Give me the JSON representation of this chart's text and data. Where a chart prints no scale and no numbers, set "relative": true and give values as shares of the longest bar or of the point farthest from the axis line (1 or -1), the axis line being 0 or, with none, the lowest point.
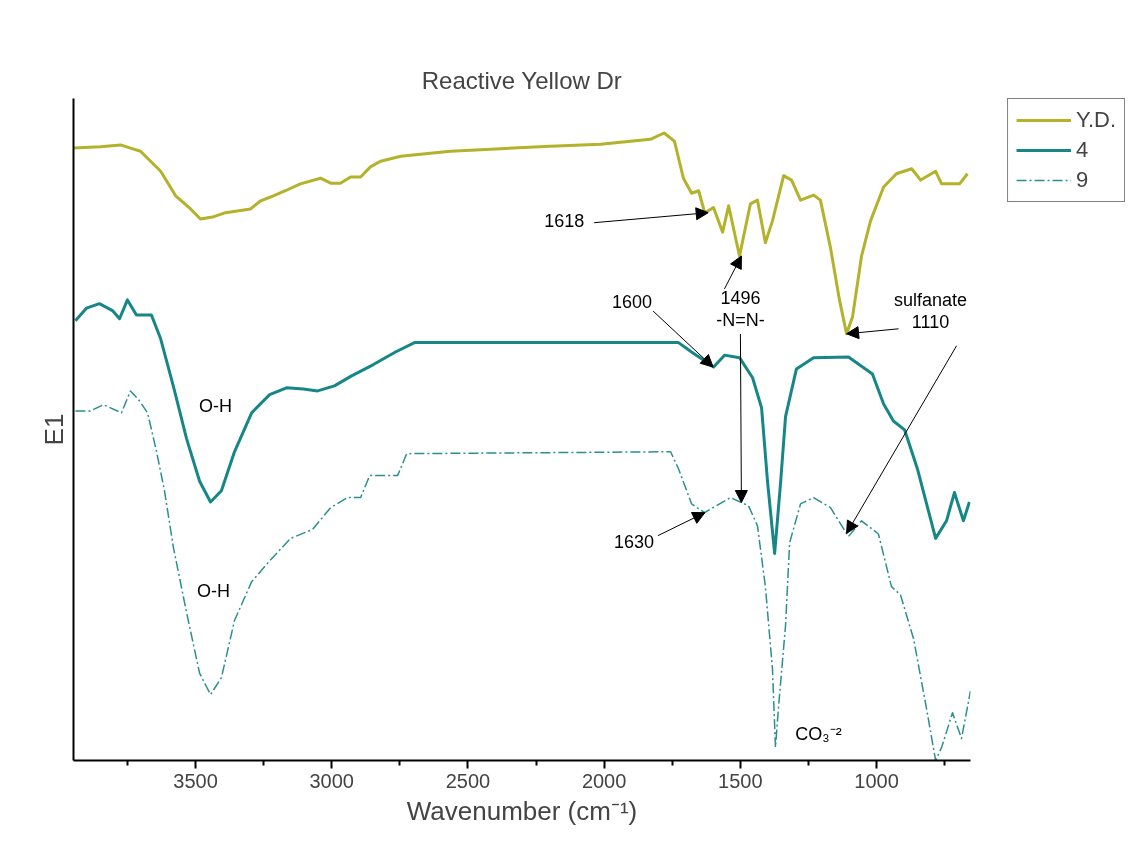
{
  "chart_data": {
    "type": "line",
    "title": "Reactive Yellow Dr",
    "xlabel": "Wavenumber (cm⁻¹)",
    "ylabel": "E1",
    "relative": true,
    "xlim": [
      3948,
      655
    ],
    "xticks": [
      {
        "value": 3750,
        "label": null
      },
      3500,
      {
        "value": 3250,
        "label": null
      },
      3000,
      {
        "value": 2750,
        "label": null
      },
      2500,
      {
        "value": 2250,
        "label": null
      },
      2000,
      {
        "value": 1750,
        "label": null
      },
      1500,
      {
        "value": 1250,
        "label": null
      },
      1000,
      {
        "value": 750,
        "label": null
      }
    ],
    "legend": "top right",
    "grid": false,
    "series": [
      {
        "name": "Y.D.",
        "color": "#b3b22a",
        "line_style": "solid",
        "x": [
          3948,
          3849,
          3775,
          3739,
          3702,
          3628,
          3573,
          3518,
          3482,
          3438,
          3390,
          3298,
          3261,
          3225,
          3170,
          3115,
          3041,
          3004,
          2968,
          2931,
          2894,
          2858,
          2821,
          2747,
          2564,
          2380,
          2197,
          2013,
          1830,
          1780,
          1742,
          1709,
          1679,
          1653,
          1631,
          1598,
          1565,
          1543,
          1503,
          1463,
          1437,
          1408,
          1382,
          1341,
          1312,
          1279,
          1231,
          1206,
          1169,
          1136,
          1110,
          1088,
          1055,
          1022,
          974,
          927,
          871,
          838,
          783,
          761,
          695,
          666
        ],
        "values": [
          0.976,
          0.978,
          0.981,
          0.976,
          0.971,
          0.939,
          0.9,
          0.879,
          0.863,
          0.866,
          0.873,
          0.879,
          0.892,
          0.898,
          0.908,
          0.919,
          0.928,
          0.92,
          0.92,
          0.93,
          0.93,
          0.946,
          0.955,
          0.963,
          0.971,
          0.975,
          0.979,
          0.982,
          0.99,
          1.0,
          0.987,
          0.928,
          0.904,
          0.908,
          0.873,
          0.881,
          0.842,
          0.884,
          0.804,
          0.887,
          0.893,
          0.825,
          0.86,
          0.932,
          0.925,
          0.893,
          0.901,
          0.893,
          0.817,
          0.734,
          0.68,
          0.707,
          0.804,
          0.86,
          0.914,
          0.935,
          0.943,
          0.925,
          0.939,
          0.919,
          0.919,
          0.935
        ]
      },
      {
        "name": "4",
        "color": "#168686",
        "line_style": "solid",
        "x": [
          3941,
          3900,
          3853,
          3805,
          3779,
          3750,
          3717,
          3662,
          3628,
          3581,
          3533,
          3485,
          3445,
          3405,
          3357,
          3294,
          3228,
          3166,
          3104,
          3052,
          2990,
          2927,
          2847,
          2766,
          2696,
          1727,
          1679,
          1598,
          1558,
          1503,
          1455,
          1422,
          1400,
          1374,
          1352,
          1334,
          1294,
          1231,
          1103,
          1015,
          974,
          938,
          897,
          850,
          783,
          743,
          714,
          681,
          659
        ],
        "values": [
          0.701,
          0.721,
          0.728,
          0.717,
          0.704,
          0.734,
          0.71,
          0.71,
          0.672,
          0.596,
          0.513,
          0.445,
          0.412,
          0.43,
          0.492,
          0.554,
          0.583,
          0.594,
          0.592,
          0.589,
          0.597,
          0.613,
          0.631,
          0.651,
          0.666,
          0.666,
          0.651,
          0.627,
          0.646,
          0.642,
          0.61,
          0.562,
          0.444,
          0.33,
          0.444,
          0.548,
          0.624,
          0.642,
          0.643,
          0.616,
          0.568,
          0.541,
          0.527,
          0.465,
          0.354,
          0.382,
          0.427,
          0.382,
          0.412
        ]
      },
      {
        "name": "9",
        "color": "#2a8f8f",
        "line_style": "dashed",
        "x": [
          3941,
          3886,
          3838,
          3772,
          3739,
          3709,
          3676,
          3643,
          3614,
          3581,
          3533,
          3485,
          3445,
          3405,
          3357,
          3294,
          3228,
          3151,
          3071,
          3004,
          2942,
          2894,
          2861,
          2758,
          2725,
          1756,
          1727,
          1679,
          1631,
          1536,
          1470,
          1437,
          1408,
          1382,
          1371,
          1360,
          1334,
          1319,
          1279,
          1231,
          1169,
          1103,
          1055,
          993,
          945,
          912,
          864,
          817,
          783,
          761,
          721,
          688,
          655
        ],
        "values": [
          0.557,
          0.557,
          0.567,
          0.554,
          0.589,
          0.575,
          0.554,
          0.492,
          0.43,
          0.339,
          0.236,
          0.139,
          0.105,
          0.132,
          0.223,
          0.285,
          0.318,
          0.354,
          0.368,
          0.403,
          0.419,
          0.419,
          0.454,
          0.454,
          0.489,
          0.492,
          0.465,
          0.409,
          0.395,
          0.419,
          0.406,
          0.374,
          0.277,
          0.146,
          0.021,
          0.084,
          0.215,
          0.347,
          0.409,
          0.419,
          0.403,
          0.357,
          0.382,
          0.361,
          0.277,
          0.264,
          0.194,
          0.084,
          0.0,
          0.021,
          0.076,
          0.035,
          0.111
        ]
      }
    ],
    "annotations": [
      {
        "text": "1618",
        "x": 1618,
        "y": 0.873
      },
      {
        "text": "1496\n-N=N-",
        "x": 1496,
        "y": 0.804
      },
      {
        "text": "sulfanate\n1110",
        "x": 1110,
        "y": 0.68
      },
      {
        "text": "1600",
        "x": 1600,
        "y": 0.627
      },
      {
        "text": "1630",
        "x": 1630,
        "y": 0.395
      },
      "O-H",
      "O-H",
      "CO₃⁻²"
    ]
  }
}
